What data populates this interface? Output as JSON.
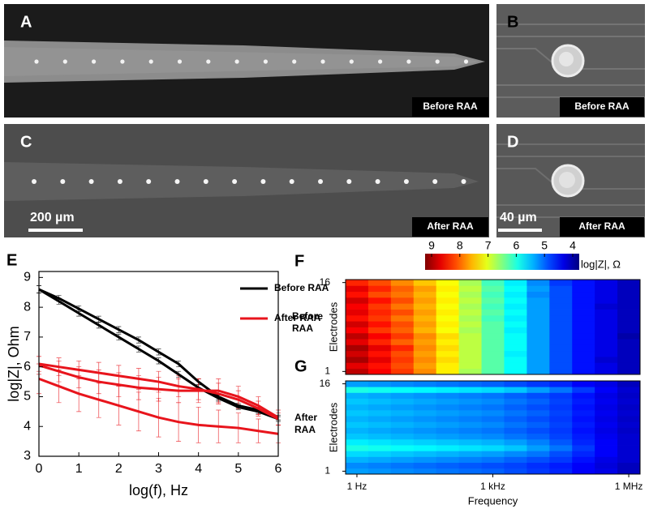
{
  "panels": [
    {
      "label": "A",
      "caption": "Before RAA"
    },
    {
      "label": "B",
      "caption": "Before RAA"
    },
    {
      "label": "C",
      "caption": "After RAA",
      "scale_bar": "200 µm"
    },
    {
      "label": "D",
      "caption": "After RAA",
      "scale_bar": "40 µm"
    }
  ],
  "chart_data": [
    {
      "type": "line",
      "panel": "E",
      "xlabel": "log(f), Hz",
      "ylabel": "log|Z|, Ohm",
      "x": [
        0,
        0.5,
        1,
        1.5,
        2,
        2.5,
        3,
        3.5,
        4,
        4.5,
        5,
        5.5,
        6
      ],
      "xlim": [
        0,
        6
      ],
      "xticks": [
        0,
        1,
        2,
        3,
        4,
        5,
        6
      ],
      "ylim": [
        3,
        9.2
      ],
      "yticks": [
        3,
        4,
        5,
        6,
        7,
        8,
        9
      ],
      "legend": "upper right",
      "series": [
        {
          "name": "Before RAA",
          "color": "#000000",
          "values": [
            8.6,
            8.3,
            7.95,
            7.6,
            7.25,
            6.9,
            6.5,
            6.1,
            5.5,
            5.0,
            4.7,
            4.55,
            4.3
          ],
          "errors": [
            0.12,
            0.1,
            0.1,
            0.1,
            0.1,
            0.1,
            0.1,
            0.1,
            0.1,
            0.1,
            0.08,
            0.08,
            0.08
          ]
        },
        {
          "name": "Before RAA",
          "color": "#000000",
          "values": [
            8.6,
            8.2,
            7.8,
            7.4,
            7.0,
            6.6,
            6.2,
            5.75,
            5.3,
            4.95,
            4.65,
            4.5,
            4.25
          ],
          "errors": [
            0.12,
            0.1,
            0.1,
            0.1,
            0.1,
            0.1,
            0.1,
            0.1,
            0.1,
            0.1,
            0.08,
            0.08,
            0.08
          ]
        },
        {
          "name": "After RAA",
          "color": "#e8141c",
          "values": [
            6.1,
            6.0,
            5.9,
            5.8,
            5.7,
            5.6,
            5.5,
            5.35,
            5.25,
            5.1,
            4.9,
            4.6,
            4.25
          ],
          "errors": [
            0.25,
            0.3,
            0.3,
            0.35,
            0.35,
            0.35,
            0.35,
            0.35,
            0.35,
            0.35,
            0.3,
            0.25,
            0.2
          ]
        },
        {
          "name": "After RAA",
          "color": "#e8141c",
          "values": [
            6.05,
            5.85,
            5.65,
            5.5,
            5.4,
            5.3,
            5.25,
            5.2,
            5.2,
            5.2,
            5.0,
            4.7,
            4.3
          ],
          "errors": [
            0.3,
            0.35,
            0.35,
            0.4,
            0.4,
            0.4,
            0.4,
            0.4,
            0.4,
            0.4,
            0.35,
            0.3,
            0.25
          ]
        },
        {
          "name": "After RAA",
          "color": "#e8141c",
          "values": [
            5.6,
            5.35,
            5.1,
            4.9,
            4.7,
            4.5,
            4.3,
            4.15,
            4.05,
            4.0,
            3.95,
            3.85,
            3.75
          ],
          "errors": [
            0.5,
            0.55,
            0.6,
            0.6,
            0.65,
            0.65,
            0.65,
            0.65,
            0.6,
            0.55,
            0.5,
            0.4,
            0.3
          ]
        }
      ]
    },
    {
      "type": "heatmap",
      "panel": "F",
      "group_label": "Before RAA",
      "ylabel": "Electrodes",
      "x": [
        0,
        0.5,
        1,
        1.5,
        2,
        2.5,
        3,
        3.5,
        4,
        4.5,
        5,
        5.5,
        6
      ],
      "xlim": [
        -0.25,
        6.25
      ],
      "ylim": [
        0.5,
        16.5
      ],
      "yticks": [
        16,
        1
      ],
      "clim": [
        9,
        4
      ],
      "colorbar": {
        "ticks": [
          9,
          8,
          7,
          6,
          5,
          4
        ],
        "label": "log|Z|, Ω"
      },
      "z": [
        [
          8.7,
          8.4,
          8.1,
          7.7,
          7.2,
          6.7,
          6.3,
          5.9,
          5.4,
          5.0,
          4.7,
          4.5,
          4.3
        ],
        [
          8.5,
          8.3,
          8.0,
          7.6,
          7.2,
          6.8,
          6.3,
          5.9,
          5.4,
          5.0,
          4.7,
          4.5,
          4.3
        ],
        [
          8.8,
          8.5,
          8.1,
          7.7,
          7.3,
          6.8,
          6.3,
          5.9,
          5.4,
          5.0,
          4.7,
          4.4,
          4.3
        ],
        [
          8.6,
          8.3,
          8.0,
          7.6,
          7.2,
          6.8,
          6.3,
          5.8,
          5.4,
          5.0,
          4.7,
          4.5,
          4.3
        ],
        [
          8.8,
          8.5,
          8.2,
          7.7,
          7.3,
          6.8,
          6.3,
          5.9,
          5.4,
          5.0,
          4.7,
          4.5,
          4.3
        ],
        [
          8.5,
          8.2,
          7.9,
          7.6,
          7.2,
          6.8,
          6.3,
          5.9,
          5.4,
          5.0,
          4.7,
          4.5,
          4.3
        ],
        [
          8.7,
          8.4,
          8.1,
          7.7,
          7.3,
          6.8,
          6.3,
          5.9,
          5.4,
          5.0,
          4.7,
          4.5,
          4.2
        ],
        [
          8.4,
          8.1,
          7.9,
          7.5,
          7.1,
          6.7,
          6.3,
          5.8,
          5.4,
          5.0,
          4.7,
          4.5,
          4.3
        ],
        [
          8.6,
          8.3,
          8.0,
          7.6,
          7.2,
          6.8,
          6.3,
          5.9,
          5.4,
          5.0,
          4.7,
          4.5,
          4.3
        ],
        [
          8.3,
          8.1,
          7.8,
          7.5,
          7.1,
          6.7,
          6.2,
          5.8,
          5.4,
          5.0,
          4.7,
          4.5,
          4.3
        ],
        [
          8.5,
          8.2,
          8.0,
          7.6,
          7.2,
          6.8,
          6.3,
          5.9,
          5.4,
          5.0,
          4.7,
          4.5,
          4.3
        ],
        [
          8.4,
          8.1,
          7.8,
          7.5,
          7.1,
          6.7,
          6.2,
          5.8,
          5.4,
          5.0,
          4.7,
          4.4,
          4.3
        ],
        [
          8.6,
          8.3,
          8.0,
          7.6,
          7.2,
          6.8,
          6.3,
          5.9,
          5.4,
          5.0,
          4.7,
          4.5,
          4.3
        ],
        [
          8.3,
          8.0,
          7.8,
          7.5,
          7.1,
          6.7,
          6.2,
          5.8,
          5.3,
          5.0,
          4.7,
          4.5,
          4.3
        ],
        [
          8.5,
          8.2,
          7.9,
          7.6,
          7.2,
          6.8,
          6.3,
          5.9,
          5.4,
          5.0,
          4.7,
          4.5,
          4.3
        ],
        [
          8.2,
          8.0,
          7.7,
          7.4,
          7.1,
          6.7,
          6.2,
          5.8,
          5.3,
          4.9,
          4.7,
          4.5,
          4.3
        ]
      ]
    },
    {
      "type": "heatmap",
      "panel": "G",
      "group_label": "After RAA",
      "ylabel": "Electrodes",
      "xlabel": "Frequency",
      "x": [
        0,
        0.5,
        1,
        1.5,
        2,
        2.5,
        3,
        3.5,
        4,
        4.5,
        5,
        5.5,
        6
      ],
      "xlim": [
        -0.25,
        6.25
      ],
      "xticks": [
        {
          "value": 0,
          "label": "1 Hz"
        },
        {
          "value": 3,
          "label": "1 kHz"
        },
        {
          "value": 6,
          "label": "1 MHz"
        }
      ],
      "ylim": [
        0.5,
        16.5
      ],
      "yticks": [
        16,
        1
      ],
      "clim": [
        9,
        4
      ],
      "z": [
        [
          5.4,
          5.35,
          5.3,
          5.25,
          5.2,
          5.15,
          5.1,
          5.0,
          4.9,
          4.8,
          4.6,
          4.5,
          4.3
        ],
        [
          5.3,
          5.25,
          5.2,
          5.15,
          5.1,
          5.05,
          5.0,
          4.95,
          4.85,
          4.75,
          4.6,
          4.45,
          4.3
        ],
        [
          5.5,
          5.45,
          5.4,
          5.35,
          5.3,
          5.25,
          5.2,
          5.1,
          5.0,
          4.9,
          4.7,
          4.5,
          4.4
        ],
        [
          5.7,
          5.65,
          5.6,
          5.55,
          5.5,
          5.45,
          5.4,
          5.3,
          5.2,
          5.0,
          4.8,
          4.6,
          4.4
        ],
        [
          6.0,
          5.95,
          5.9,
          5.85,
          5.8,
          5.75,
          5.7,
          5.6,
          5.4,
          5.2,
          4.9,
          4.6,
          4.4
        ],
        [
          5.8,
          5.75,
          5.7,
          5.65,
          5.6,
          5.55,
          5.5,
          5.4,
          5.25,
          5.05,
          4.8,
          4.6,
          4.4
        ],
        [
          5.6,
          5.55,
          5.5,
          5.45,
          5.4,
          5.35,
          5.3,
          5.2,
          5.1,
          4.95,
          4.75,
          4.55,
          4.4
        ],
        [
          5.5,
          5.45,
          5.4,
          5.35,
          5.3,
          5.25,
          5.2,
          5.1,
          5.0,
          4.9,
          4.7,
          4.5,
          4.35
        ],
        [
          5.6,
          5.55,
          5.5,
          5.45,
          5.4,
          5.35,
          5.3,
          5.2,
          5.1,
          4.95,
          4.75,
          4.55,
          4.4
        ],
        [
          5.5,
          5.45,
          5.4,
          5.35,
          5.3,
          5.25,
          5.2,
          5.1,
          5.0,
          4.9,
          4.7,
          4.5,
          4.35
        ],
        [
          5.6,
          5.55,
          5.5,
          5.45,
          5.4,
          5.35,
          5.3,
          5.2,
          5.1,
          4.95,
          4.75,
          4.55,
          4.4
        ],
        [
          5.5,
          5.45,
          5.4,
          5.35,
          5.3,
          5.25,
          5.2,
          5.1,
          5.0,
          4.9,
          4.7,
          4.5,
          4.35
        ],
        [
          5.6,
          5.55,
          5.5,
          5.45,
          5.4,
          5.35,
          5.3,
          5.2,
          5.1,
          4.95,
          4.75,
          4.55,
          4.4
        ],
        [
          5.5,
          5.45,
          5.4,
          5.35,
          5.3,
          5.25,
          5.2,
          5.1,
          5.0,
          4.9,
          4.7,
          4.5,
          4.35
        ],
        [
          6.0,
          5.95,
          5.9,
          5.85,
          5.8,
          5.75,
          5.7,
          5.6,
          5.4,
          5.2,
          4.9,
          4.6,
          4.4
        ],
        [
          5.4,
          5.35,
          5.3,
          5.25,
          5.2,
          5.15,
          5.1,
          5.0,
          4.9,
          4.8,
          4.6,
          4.5,
          4.3
        ]
      ]
    }
  ]
}
